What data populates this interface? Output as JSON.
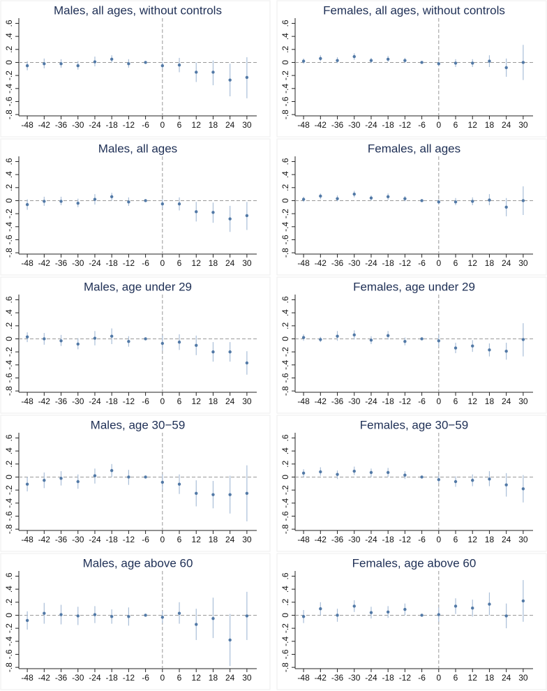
{
  "chart_data": [
    {
      "type": "errorbar",
      "title": "Males, all ages, without controls",
      "x": [
        -48,
        -42,
        -36,
        -30,
        -24,
        -18,
        -12,
        -6,
        0,
        6,
        12,
        18,
        24,
        30
      ],
      "xticks": [
        -48,
        -42,
        -36,
        -30,
        -24,
        -18,
        -12,
        -6,
        0,
        6,
        12,
        18,
        24,
        30
      ],
      "xlim": [
        -51,
        33.5
      ],
      "values": [
        -0.05,
        -0.02,
        -0.02,
        -0.05,
        0.01,
        0.05,
        -0.02,
        0,
        -0.05,
        -0.04,
        -0.15,
        -0.15,
        -0.27,
        -0.23
      ],
      "ci_low": [
        -0.12,
        -0.09,
        -0.08,
        -0.11,
        -0.06,
        0,
        -0.08,
        0,
        -0.1,
        -0.15,
        -0.3,
        -0.35,
        -0.52,
        -0.55
      ],
      "ci_high": [
        0.02,
        0.06,
        0.05,
        0.02,
        0.09,
        0.11,
        0.05,
        0,
        0.01,
        0.07,
        0,
        0.03,
        -0.02,
        0.08
      ],
      "ylim": [
        -0.82,
        0.68
      ],
      "yticks": [
        {
          "value": 0.6,
          "label": ".6"
        },
        {
          "value": 0.4,
          "label": ".4"
        },
        {
          "value": 0.2,
          "label": ".2"
        },
        0,
        {
          "value": -0.2,
          "label": "-.2"
        },
        {
          "value": -0.4,
          "label": "-.4"
        },
        {
          "value": -0.6,
          "label": "-.6"
        },
        {
          "value": -0.8,
          "label": "-.8"
        }
      ],
      "hline": 0,
      "vline": 0,
      "point_color": "#5279a6",
      "ci_color": "#a9bed8"
    },
    {
      "type": "errorbar",
      "title": "Females, all ages, without controls",
      "x": [
        -48,
        -42,
        -36,
        -30,
        -24,
        -18,
        -12,
        -6,
        0,
        6,
        12,
        18,
        24,
        30
      ],
      "xticks": [
        -48,
        -42,
        -36,
        -30,
        -24,
        -18,
        -12,
        -6,
        0,
        6,
        12,
        18,
        24,
        30
      ],
      "xlim": [
        -51,
        33.5
      ],
      "values": [
        0.02,
        0.06,
        0.03,
        0.09,
        0.03,
        0.05,
        0.03,
        0,
        -0.02,
        -0.01,
        -0.01,
        0.02,
        -0.08,
        0
      ],
      "ci_low": [
        -0.02,
        0.02,
        -0.01,
        0.04,
        -0.01,
        0.01,
        -0.01,
        0,
        -0.06,
        -0.07,
        -0.07,
        -0.07,
        -0.22,
        -0.27
      ],
      "ci_high": [
        0.06,
        0.11,
        0.08,
        0.14,
        0.07,
        0.1,
        0.07,
        0,
        0.02,
        0.05,
        0.05,
        0.11,
        0.06,
        0.27
      ],
      "ylim": [
        -0.82,
        0.68
      ],
      "yticks": [
        {
          "value": 0.6,
          "label": ".6"
        },
        {
          "value": 0.4,
          "label": ".4"
        },
        {
          "value": 0.2,
          "label": ".2"
        },
        0,
        {
          "value": -0.2,
          "label": "-.2"
        },
        {
          "value": -0.4,
          "label": "-.4"
        },
        {
          "value": -0.6,
          "label": "-.6"
        },
        {
          "value": -0.8,
          "label": "-.8"
        }
      ],
      "hline": 0,
      "vline": 0,
      "point_color": "#5279a6",
      "ci_color": "#a9bed8"
    },
    {
      "type": "errorbar",
      "title": "Males, all ages",
      "x": [
        -48,
        -42,
        -36,
        -30,
        -24,
        -18,
        -12,
        -6,
        0,
        6,
        12,
        18,
        24,
        30
      ],
      "xticks": [
        -48,
        -42,
        -36,
        -30,
        -24,
        -18,
        -12,
        -6,
        0,
        6,
        12,
        18,
        24,
        30
      ],
      "xlim": [
        -51,
        33.5
      ],
      "values": [
        -0.06,
        -0.01,
        -0.01,
        -0.04,
        0.02,
        0.06,
        -0.02,
        0,
        -0.05,
        -0.05,
        -0.17,
        -0.18,
        -0.28,
        -0.23
      ],
      "ci_low": [
        -0.14,
        -0.08,
        -0.07,
        -0.1,
        -0.06,
        0,
        -0.08,
        0,
        -0.12,
        -0.15,
        -0.32,
        -0.34,
        -0.48,
        -0.45
      ],
      "ci_high": [
        0.02,
        0.06,
        0.06,
        0.03,
        0.1,
        0.12,
        0.05,
        0,
        0.02,
        0.05,
        -0.02,
        -0.03,
        -0.08,
        -0.02
      ],
      "ylim": [
        -0.82,
        0.68
      ],
      "yticks": [
        {
          "value": 0.6,
          "label": ".6"
        },
        {
          "value": 0.4,
          "label": ".4"
        },
        {
          "value": 0.2,
          "label": ".2"
        },
        0,
        {
          "value": -0.2,
          "label": "-.2"
        },
        {
          "value": -0.4,
          "label": "-.4"
        },
        {
          "value": -0.6,
          "label": "-.6"
        },
        {
          "value": -0.8,
          "label": "-.8"
        }
      ],
      "hline": 0,
      "vline": 0,
      "point_color": "#5279a6",
      "ci_color": "#a9bed8"
    },
    {
      "type": "errorbar",
      "title": "Females, all ages",
      "x": [
        -48,
        -42,
        -36,
        -30,
        -24,
        -18,
        -12,
        -6,
        0,
        6,
        12,
        18,
        24,
        30
      ],
      "xticks": [
        -48,
        -42,
        -36,
        -30,
        -24,
        -18,
        -12,
        -6,
        0,
        6,
        12,
        18,
        24,
        30
      ],
      "xlim": [
        -51,
        33.5
      ],
      "values": [
        0.02,
        0.07,
        0.03,
        0.1,
        0.04,
        0.06,
        0.03,
        0,
        -0.02,
        -0.02,
        -0.01,
        0.01,
        -0.1,
        0
      ],
      "ci_low": [
        -0.02,
        0.02,
        -0.01,
        0.05,
        0,
        0.01,
        -0.01,
        0,
        -0.06,
        -0.07,
        -0.07,
        -0.07,
        -0.24,
        -0.22
      ],
      "ci_high": [
        0.06,
        0.11,
        0.08,
        0.15,
        0.08,
        0.11,
        0.07,
        0,
        0.02,
        0.04,
        0.05,
        0.1,
        0.04,
        0.22
      ],
      "ylim": [
        -0.82,
        0.68
      ],
      "yticks": [
        {
          "value": 0.6,
          "label": ".6"
        },
        {
          "value": 0.4,
          "label": ".4"
        },
        {
          "value": 0.2,
          "label": ".2"
        },
        0,
        {
          "value": -0.2,
          "label": "-.2"
        },
        {
          "value": -0.4,
          "label": "-.4"
        },
        {
          "value": -0.6,
          "label": "-.6"
        },
        {
          "value": -0.8,
          "label": "-.8"
        }
      ],
      "hline": 0,
      "vline": 0,
      "point_color": "#5279a6",
      "ci_color": "#a9bed8"
    },
    {
      "type": "errorbar",
      "title": "Males, age under 29",
      "x": [
        -48,
        -42,
        -36,
        -30,
        -24,
        -18,
        -12,
        -6,
        0,
        6,
        12,
        18,
        24,
        30
      ],
      "xticks": [
        -48,
        -42,
        -36,
        -30,
        -24,
        -18,
        -12,
        -6,
        0,
        6,
        12,
        18,
        24,
        30
      ],
      "xlim": [
        -51,
        33.5
      ],
      "values": [
        0.03,
        0,
        -0.03,
        -0.08,
        0.01,
        0.04,
        -0.04,
        0,
        -0.07,
        -0.05,
        -0.1,
        -0.2,
        -0.2,
        -0.37
      ],
      "ci_low": [
        -0.05,
        -0.09,
        -0.11,
        -0.16,
        -0.1,
        -0.08,
        -0.12,
        0,
        -0.18,
        -0.17,
        -0.25,
        -0.35,
        -0.35,
        -0.55
      ],
      "ci_high": [
        0.1,
        0.09,
        0.06,
        0.01,
        0.12,
        0.16,
        0.04,
        0,
        0.05,
        0.07,
        0.05,
        -0.05,
        -0.05,
        -0.19
      ],
      "ylim": [
        -0.82,
        0.68
      ],
      "yticks": [
        {
          "value": 0.6,
          "label": ".6"
        },
        {
          "value": 0.4,
          "label": ".4"
        },
        {
          "value": 0.2,
          "label": ".2"
        },
        0,
        {
          "value": -0.2,
          "label": "-.2"
        },
        {
          "value": -0.4,
          "label": "-.4"
        },
        {
          "value": -0.6,
          "label": "-.6"
        },
        {
          "value": -0.8,
          "label": "-.8"
        }
      ],
      "hline": 0,
      "vline": 0,
      "point_color": "#5279a6",
      "ci_color": "#a9bed8"
    },
    {
      "type": "errorbar",
      "title": "Females, age under 29",
      "x": [
        -48,
        -42,
        -36,
        -30,
        -24,
        -18,
        -12,
        -6,
        0,
        6,
        12,
        18,
        24,
        30
      ],
      "xticks": [
        -48,
        -42,
        -36,
        -30,
        -24,
        -18,
        -12,
        -6,
        0,
        6,
        12,
        18,
        24,
        30
      ],
      "xlim": [
        -51,
        33.5
      ],
      "values": [
        0.02,
        -0.01,
        0.04,
        0.06,
        -0.02,
        0.05,
        -0.04,
        0,
        -0.03,
        -0.14,
        -0.11,
        -0.17,
        -0.19,
        -0.01
      ],
      "ci_low": [
        -0.03,
        -0.05,
        -0.03,
        -0.01,
        -0.08,
        -0.01,
        -0.1,
        0,
        -0.12,
        -0.22,
        -0.2,
        -0.27,
        -0.32,
        -0.27
      ],
      "ci_high": [
        0.07,
        0.03,
        0.12,
        0.13,
        0.04,
        0.12,
        0.02,
        0,
        0.06,
        -0.06,
        -0.02,
        -0.07,
        -0.06,
        0.24
      ],
      "ylim": [
        -0.82,
        0.68
      ],
      "yticks": [
        {
          "value": 0.6,
          "label": ".6"
        },
        {
          "value": 0.4,
          "label": ".4"
        },
        {
          "value": 0.2,
          "label": ".2"
        },
        0,
        {
          "value": -0.2,
          "label": "-.2"
        },
        {
          "value": -0.4,
          "label": "-.4"
        },
        {
          "value": -0.6,
          "label": "-.6"
        },
        {
          "value": -0.8,
          "label": "-.8"
        }
      ],
      "hline": 0,
      "vline": 0,
      "point_color": "#5279a6",
      "ci_color": "#a9bed8"
    },
    {
      "type": "errorbar",
      "title": "Males, age 30−59",
      "x": [
        -48,
        -42,
        -36,
        -30,
        -24,
        -18,
        -12,
        -6,
        0,
        6,
        12,
        18,
        24,
        30
      ],
      "xticks": [
        -48,
        -42,
        -36,
        -30,
        -24,
        -18,
        -12,
        -6,
        0,
        6,
        12,
        18,
        24,
        30
      ],
      "xlim": [
        -51,
        33.5
      ],
      "values": [
        -0.11,
        -0.05,
        -0.02,
        -0.07,
        0.02,
        0.1,
        0,
        0,
        -0.08,
        -0.11,
        -0.25,
        -0.27,
        -0.27,
        -0.25
      ],
      "ci_low": [
        -0.22,
        -0.17,
        -0.13,
        -0.18,
        -0.1,
        0,
        -0.12,
        0,
        -0.2,
        -0.26,
        -0.45,
        -0.48,
        -0.56,
        -0.68
      ],
      "ci_high": [
        0,
        0.07,
        0.09,
        0.04,
        0.13,
        0.2,
        0.11,
        0,
        0.04,
        0.04,
        -0.05,
        -0.06,
        0.02,
        0.18
      ],
      "ylim": [
        -0.82,
        0.68
      ],
      "yticks": [
        {
          "value": 0.6,
          "label": ".6"
        },
        {
          "value": 0.4,
          "label": ".4"
        },
        {
          "value": 0.2,
          "label": ".2"
        },
        0,
        {
          "value": -0.2,
          "label": "-.2"
        },
        {
          "value": -0.4,
          "label": "-.4"
        },
        {
          "value": -0.6,
          "label": "-.6"
        },
        {
          "value": -0.8,
          "label": "-.8"
        }
      ],
      "hline": 0,
      "vline": 0,
      "point_color": "#5279a6",
      "ci_color": "#a9bed8"
    },
    {
      "type": "errorbar",
      "title": "Females, age 30−59",
      "x": [
        -48,
        -42,
        -36,
        -30,
        -24,
        -18,
        -12,
        -6,
        0,
        6,
        12,
        18,
        24,
        30
      ],
      "xticks": [
        -48,
        -42,
        -36,
        -30,
        -24,
        -18,
        -12,
        -6,
        0,
        6,
        12,
        18,
        24,
        30
      ],
      "xlim": [
        -51,
        33.5
      ],
      "values": [
        0.06,
        0.08,
        0.04,
        0.09,
        0.07,
        0.07,
        0.03,
        0,
        -0.04,
        -0.07,
        -0.05,
        -0.03,
        -0.12,
        -0.18
      ],
      "ci_low": [
        0,
        0.02,
        -0.03,
        0.03,
        0,
        0,
        -0.03,
        0,
        -0.1,
        -0.15,
        -0.14,
        -0.14,
        -0.3,
        -0.39
      ],
      "ci_high": [
        0.12,
        0.15,
        0.1,
        0.16,
        0.13,
        0.14,
        0.09,
        0,
        0.03,
        0.01,
        0.04,
        0.09,
        0.06,
        0.03
      ],
      "ylim": [
        -0.82,
        0.68
      ],
      "yticks": [
        {
          "value": 0.6,
          "label": ".6"
        },
        {
          "value": 0.4,
          "label": ".4"
        },
        {
          "value": 0.2,
          "label": ".2"
        },
        0,
        {
          "value": -0.2,
          "label": "-.2"
        },
        {
          "value": -0.4,
          "label": "-.4"
        },
        {
          "value": -0.6,
          "label": "-.6"
        },
        {
          "value": -0.8,
          "label": "-.8"
        }
      ],
      "hline": 0,
      "vline": 0,
      "point_color": "#5279a6",
      "ci_color": "#a9bed8"
    },
    {
      "type": "errorbar",
      "title": "Males, age above 60",
      "x": [
        -48,
        -42,
        -36,
        -30,
        -24,
        -18,
        -12,
        -6,
        0,
        6,
        12,
        18,
        24,
        30
      ],
      "xticks": [
        -48,
        -42,
        -36,
        -30,
        -24,
        -18,
        -12,
        -6,
        0,
        6,
        12,
        18,
        24,
        30
      ],
      "xlim": [
        -51,
        33.5
      ],
      "values": [
        -0.08,
        0.03,
        0.01,
        -0.01,
        0.01,
        -0.02,
        -0.02,
        0,
        -0.03,
        0.03,
        -0.14,
        -0.05,
        -0.38,
        -0.01
      ],
      "ci_low": [
        -0.22,
        -0.13,
        -0.14,
        -0.15,
        -0.12,
        -0.13,
        -0.16,
        0,
        -0.12,
        -0.13,
        -0.38,
        -0.35,
        -0.78,
        -0.38
      ],
      "ci_high": [
        0.06,
        0.19,
        0.16,
        0.13,
        0.14,
        0.09,
        0.12,
        0,
        0.06,
        0.2,
        0.1,
        0.27,
        0.02,
        0.36
      ],
      "ylim": [
        -0.82,
        0.68
      ],
      "yticks": [
        {
          "value": 0.6,
          "label": ".6"
        },
        {
          "value": 0.4,
          "label": ".4"
        },
        {
          "value": 0.2,
          "label": ".2"
        },
        0,
        {
          "value": -0.2,
          "label": "-.2"
        },
        {
          "value": -0.4,
          "label": "-.4"
        },
        {
          "value": -0.6,
          "label": "-.6"
        },
        {
          "value": -0.8,
          "label": "-.8"
        }
      ],
      "hline": 0,
      "vline": 0,
      "point_color": "#5279a6",
      "ci_color": "#a9bed8"
    },
    {
      "type": "errorbar",
      "title": "Females, age above 60",
      "x": [
        -48,
        -42,
        -36,
        -30,
        -24,
        -18,
        -12,
        -6,
        0,
        6,
        12,
        18,
        24,
        30
      ],
      "xticks": [
        -48,
        -42,
        -36,
        -30,
        -24,
        -18,
        -12,
        -6,
        0,
        6,
        12,
        18,
        24,
        30
      ],
      "xlim": [
        -51,
        33.5
      ],
      "values": [
        -0.02,
        0.1,
        0,
        0.14,
        0.04,
        0.05,
        0.09,
        0,
        0.01,
        0.14,
        0.11,
        0.17,
        -0.01,
        0.22
      ],
      "ci_low": [
        -0.12,
        0,
        -0.1,
        0.05,
        -0.05,
        -0.04,
        0,
        0,
        -0.1,
        0.02,
        -0.02,
        0,
        -0.2,
        -0.1
      ],
      "ci_high": [
        0.08,
        0.2,
        0.1,
        0.23,
        0.13,
        0.14,
        0.18,
        0,
        0.12,
        0.26,
        0.24,
        0.35,
        0.18,
        0.54
      ],
      "ylim": [
        -0.82,
        0.68
      ],
      "yticks": [
        {
          "value": 0.6,
          "label": ".6"
        },
        {
          "value": 0.4,
          "label": ".4"
        },
        {
          "value": 0.2,
          "label": ".2"
        },
        0,
        {
          "value": -0.2,
          "label": "-.2"
        },
        {
          "value": -0.4,
          "label": "-.4"
        },
        {
          "value": -0.6,
          "label": "-.6"
        },
        {
          "value": -0.8,
          "label": "-.8"
        }
      ],
      "hline": 0,
      "vline": 0,
      "point_color": "#5279a6",
      "ci_color": "#a9bed8"
    }
  ]
}
